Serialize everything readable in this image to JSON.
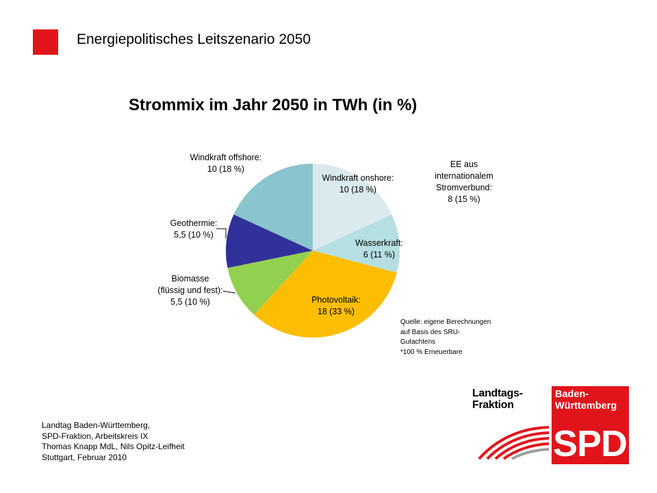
{
  "header": {
    "title": "Energiepolitisches Leitszenario 2050"
  },
  "chart_data": {
    "type": "pie",
    "title": "Strommix im Jahr 2050 in TWh (in %)",
    "slices": [
      {
        "name": "Windkraft onshore:",
        "value": 10,
        "percent": "10 (18 %)",
        "color": "#daeaef"
      },
      {
        "name": "Wasserkraft:",
        "value": 6,
        "percent": "6 (11 %)",
        "color": "#b6dfe2"
      },
      {
        "name": "Photovoltaik:",
        "value": 18,
        "percent": "18 (33 %)",
        "color": "#fdbd00"
      },
      {
        "name": "Biomasse (flüssig und fest):",
        "value": 5.5,
        "percent": "5,5 (10 %)",
        "color": "#92d050"
      },
      {
        "name": "Geothermie:",
        "value": 5.5,
        "percent": "5,5 (10 %)",
        "color": "#30309a"
      },
      {
        "name": "Windkraft offshore:",
        "value": 10,
        "percent": "10 (18 %)",
        "color": "#8ac4cc"
      }
    ],
    "labels": {
      "onshore": [
        "Windkraft onshore:",
        "10 (18 %)"
      ],
      "wasser": [
        "Wasserkraft:",
        "6 (11 %)"
      ],
      "pv": [
        "Photovoltaik:",
        "18 (33 %)"
      ],
      "bio": [
        "Biomasse",
        "(flüssig und fest):",
        "5,5 (10 %)"
      ],
      "geo": [
        "Geothermie:",
        "5,5 (10 %)"
      ],
      "offshore": [
        "Windkraft offshore:",
        "10 (18 %)"
      ]
    },
    "annotation": [
      "EE aus",
      "internationalem",
      "Stromverbund:",
      "8 (15 %)"
    ],
    "source_note": [
      "Quelle: eigene Berechnungen",
      "auf Basis des SRU-",
      "Gutachtens",
      "*100 % Erneuerbare"
    ]
  },
  "footer": {
    "lines": [
      "Landtag Baden-Württemberg,",
      "SPD-Fraktion, Arbeitskreis IX",
      "Thomas Knapp MdL, Nils Opitz-Leifheit",
      "Stuttgart, Februar 2010"
    ]
  },
  "logo": {
    "fraktion": [
      "Landtags-",
      "Fraktion"
    ],
    "state": [
      "Baden-",
      "Württemberg"
    ],
    "party": "SPD",
    "color": "#e2141b"
  }
}
